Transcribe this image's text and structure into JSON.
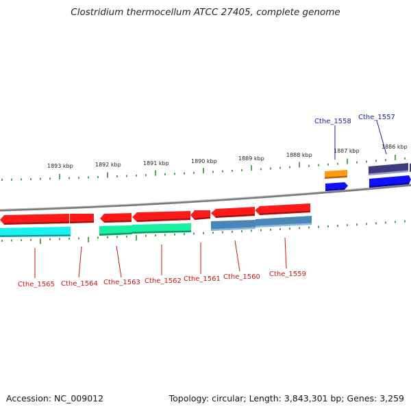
{
  "header": {
    "title": "Clostridium thermocellum ATCC 27405, complete genome"
  },
  "footer": {
    "accession": "Accession: NC_009012",
    "stats": "Topology: circular; Length: 3,843,301 bp; Genes: 3,259"
  },
  "colors": {
    "backbone": "#8a8a8a",
    "tick": "#2e8b2e",
    "label_top": "#1a1aaa",
    "label_bottom": "#cc1111",
    "red": "#ff1a1a",
    "cyan": "#19f0f0",
    "green": "#16f0a0",
    "steelblue": "#4a86b8",
    "orange": "#ff9a14",
    "blue": "#1010ff",
    "darkpurple": "#3d3a80"
  },
  "scale_labels": [
    "1893 kbp",
    "1892 kbp",
    "1891 kbp",
    "1890 kbp",
    "1889 kbp",
    "1888 kbp",
    "1887 kbp",
    "1886 kbp"
  ],
  "gene_labels_top": [
    "Cthe_1558",
    "Cthe_1557"
  ],
  "gene_labels_bottom": [
    "Cthe_1565",
    "Cthe_1564",
    "Cthe_1563",
    "Cthe_1562",
    "Cthe_1561",
    "Cthe_1560",
    "Cthe_1559"
  ]
}
